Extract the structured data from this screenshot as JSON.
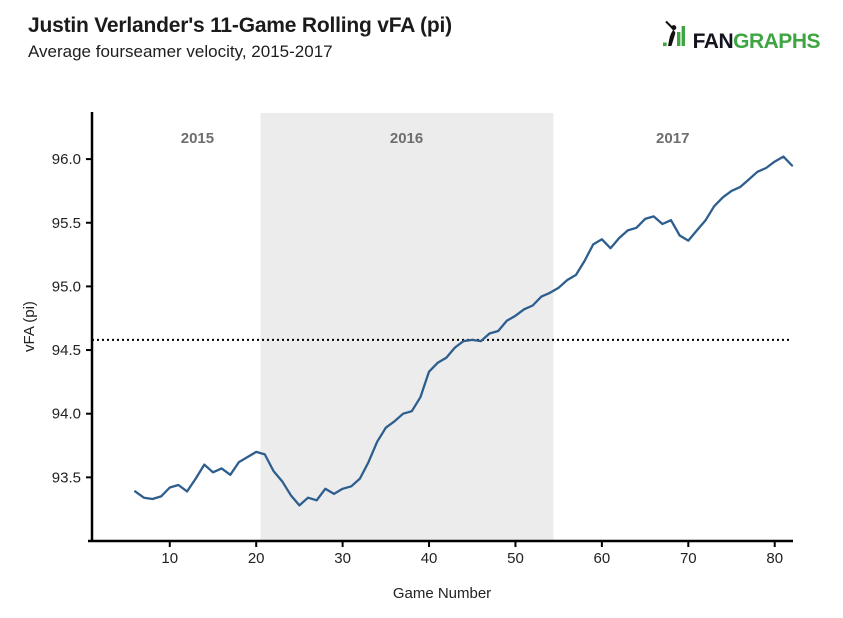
{
  "header": {
    "title": "Justin Verlander's 11-Game Rolling vFA (pi)",
    "subtitle": "Average fourseamer velocity, 2015-2017"
  },
  "logo": {
    "fan": "FAN",
    "graphs": "GRAPHS",
    "green": "#3fa543",
    "dark": "#14141e"
  },
  "chart_data": {
    "type": "line",
    "title": "Justin Verlander's 11-Game Rolling vFA (pi)",
    "subtitle": "Average fourseamer velocity, 2015-2017",
    "xlabel": "Game Number",
    "ylabel": "vFA (pi)",
    "series": [
      {
        "name": "11-game rolling average fourseamer velocity",
        "color": "#2e5e8e",
        "x": [
          6,
          7,
          8,
          9,
          10,
          11,
          12,
          13,
          14,
          15,
          16,
          17,
          18,
          19,
          20,
          21,
          22,
          23,
          24,
          25,
          26,
          27,
          28,
          29,
          30,
          31,
          32,
          33,
          34,
          35,
          36,
          37,
          38,
          39,
          40,
          41,
          42,
          43,
          44,
          45,
          46,
          47,
          48,
          49,
          50,
          51,
          52,
          53,
          54,
          55,
          56,
          57,
          58,
          59,
          60,
          61,
          62,
          63,
          64,
          65,
          66,
          67,
          68,
          69,
          70,
          71,
          72,
          73,
          74,
          75,
          76,
          77,
          78,
          79,
          80,
          81,
          82
        ],
        "values": [
          93.39,
          93.34,
          93.33,
          93.35,
          93.42,
          93.44,
          93.39,
          93.49,
          93.6,
          93.54,
          93.57,
          93.52,
          93.62,
          93.66,
          93.7,
          93.68,
          93.55,
          93.47,
          93.36,
          93.28,
          93.34,
          93.32,
          93.41,
          93.37,
          93.41,
          93.43,
          93.49,
          93.62,
          93.78,
          93.89,
          93.94,
          94.0,
          94.02,
          94.13,
          94.33,
          94.4,
          94.44,
          94.52,
          94.57,
          94.58,
          94.57,
          94.63,
          94.65,
          94.73,
          94.77,
          94.82,
          94.85,
          94.92,
          94.95,
          94.99,
          95.05,
          95.09,
          95.2,
          95.33,
          95.37,
          95.3,
          95.38,
          95.44,
          95.46,
          95.53,
          95.55,
          95.49,
          95.52,
          95.4,
          95.36,
          95.44,
          95.52,
          95.63,
          95.7,
          95.75,
          95.78,
          95.84,
          95.9,
          95.93,
          95.98,
          96.02,
          95.95
        ]
      }
    ],
    "xlim": [
      1,
      82
    ],
    "ylim": [
      93.0,
      96.37
    ],
    "x_ticks": [
      10,
      20,
      30,
      40,
      50,
      60,
      70,
      80
    ],
    "y_ticks": [
      93.5,
      94.0,
      94.5,
      95.0,
      95.5,
      96.0
    ],
    "grid": false,
    "legend_position": "none",
    "reference_line": {
      "y": 94.58,
      "style": "dotted",
      "color": "#000000"
    },
    "band": {
      "label": "2016",
      "x0": 20.5,
      "x1": 54.4,
      "color": "#ececec"
    },
    "annotations": [
      {
        "text": "2015",
        "x": 13.2
      },
      {
        "text": "2016",
        "x": 37.4
      },
      {
        "text": "2017",
        "x": 68.2
      }
    ],
    "annotation_color": "#6e6e6e",
    "axis_color": "#000000",
    "tick_label_color": "#222222"
  }
}
